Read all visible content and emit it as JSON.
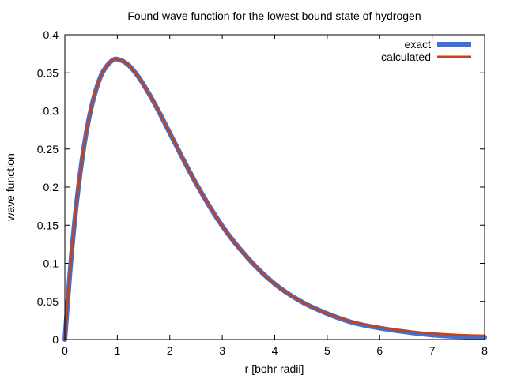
{
  "chart_data": {
    "type": "line",
    "title": "Found wave function for the lowest bound state of hydrogen",
    "xlabel": "r [bohr radii]",
    "ylabel": "wave function",
    "xlim": [
      0,
      8
    ],
    "ylim": [
      0,
      0.4
    ],
    "x_ticks": [
      "0",
      "1",
      "2",
      "3",
      "4",
      "5",
      "6",
      "7",
      "8"
    ],
    "y_ticks": [
      "0",
      "0.05",
      "0.1",
      "0.15",
      "0.2",
      "0.25",
      "0.3",
      "0.35",
      "0.4"
    ],
    "legend_position": "top-right",
    "grid": false,
    "series": [
      {
        "name": "exact",
        "color": "#3f6fdc",
        "x": [
          0,
          0.1,
          0.2,
          0.3,
          0.4,
          0.5,
          0.6,
          0.7,
          0.8,
          0.9,
          1.0,
          1.2,
          1.4,
          1.6,
          1.8,
          2.0,
          2.5,
          3.0,
          3.5,
          4.0,
          4.5,
          5.0,
          5.5,
          6.0,
          6.5,
          7.0,
          7.5,
          8.0
        ],
        "values": [
          0,
          0.09,
          0.164,
          0.222,
          0.268,
          0.303,
          0.329,
          0.348,
          0.359,
          0.366,
          0.368,
          0.361,
          0.345,
          0.323,
          0.298,
          0.271,
          0.205,
          0.149,
          0.106,
          0.073,
          0.05,
          0.034,
          0.022,
          0.015,
          0.01,
          0.006,
          0.004,
          0.003
        ]
      },
      {
        "name": "calculated",
        "color": "#c0441c",
        "x": [
          0,
          0.1,
          0.2,
          0.3,
          0.4,
          0.5,
          0.6,
          0.7,
          0.8,
          0.9,
          1.0,
          1.2,
          1.4,
          1.6,
          1.8,
          2.0,
          2.5,
          3.0,
          3.5,
          4.0,
          4.5,
          5.0,
          5.5,
          6.0,
          6.5,
          7.0,
          7.5,
          8.0
        ],
        "values": [
          0,
          0.09,
          0.164,
          0.222,
          0.268,
          0.303,
          0.329,
          0.348,
          0.359,
          0.366,
          0.368,
          0.361,
          0.345,
          0.323,
          0.298,
          0.271,
          0.205,
          0.149,
          0.106,
          0.073,
          0.05,
          0.034,
          0.023,
          0.016,
          0.011,
          0.008,
          0.006,
          0.005
        ]
      }
    ]
  }
}
